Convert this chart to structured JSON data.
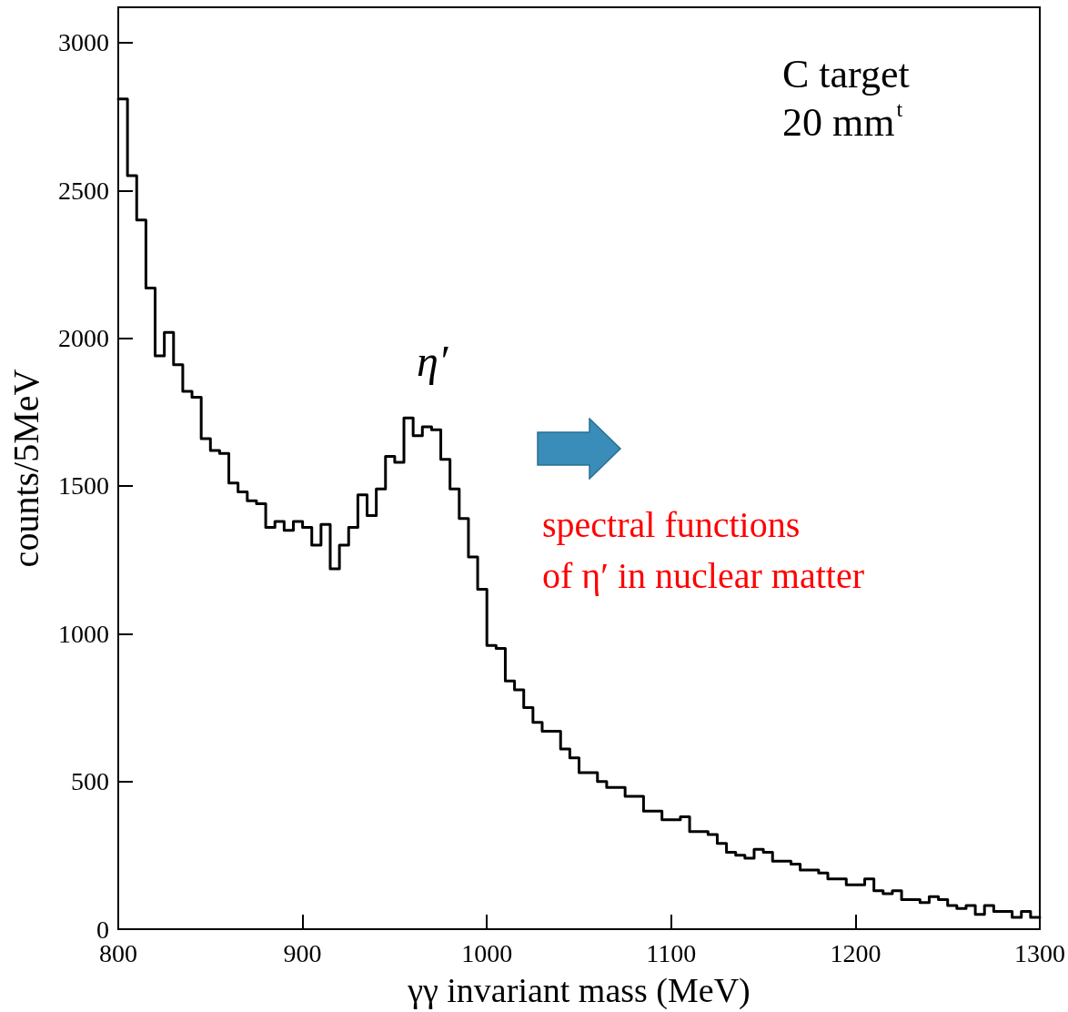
{
  "chart_data": {
    "type": "histogram",
    "xlabel": "γγ invariant mass (MeV)",
    "ylabel": "counts/5MeV",
    "bins": [
      800,
      805,
      810,
      815,
      820,
      825,
      830,
      835,
      840,
      845,
      850,
      855,
      860,
      865,
      870,
      875,
      880,
      885,
      890,
      895,
      900,
      905,
      910,
      915,
      920,
      925,
      930,
      935,
      940,
      945,
      950,
      955,
      960,
      965,
      970,
      975,
      980,
      985,
      990,
      995,
      1000,
      1005,
      1010,
      1015,
      1020,
      1025,
      1030,
      1035,
      1040,
      1045,
      1050,
      1055,
      1060,
      1065,
      1070,
      1075,
      1080,
      1085,
      1090,
      1095,
      1100,
      1105,
      1110,
      1115,
      1120,
      1125,
      1130,
      1135,
      1140,
      1145,
      1150,
      1155,
      1160,
      1165,
      1170,
      1175,
      1180,
      1185,
      1190,
      1195,
      1200,
      1205,
      1210,
      1215,
      1220,
      1225,
      1230,
      1235,
      1240,
      1245,
      1250,
      1255,
      1260,
      1265,
      1270,
      1275,
      1280,
      1285,
      1290,
      1295,
      1300
    ],
    "values": [
      2810,
      2550,
      2400,
      2170,
      1940,
      2020,
      1910,
      1820,
      1800,
      1660,
      1620,
      1610,
      1510,
      1480,
      1450,
      1440,
      1360,
      1380,
      1350,
      1380,
      1360,
      1300,
      1370,
      1220,
      1300,
      1360,
      1470,
      1400,
      1490,
      1600,
      1580,
      1730,
      1670,
      1700,
      1690,
      1590,
      1490,
      1390,
      1260,
      1150,
      960,
      950,
      840,
      810,
      750,
      700,
      670,
      670,
      610,
      580,
      530,
      530,
      500,
      480,
      480,
      450,
      450,
      400,
      400,
      370,
      370,
      380,
      330,
      330,
      320,
      290,
      260,
      250,
      240,
      270,
      260,
      230,
      230,
      220,
      200,
      200,
      190,
      170,
      170,
      150,
      150,
      170,
      130,
      120,
      130,
      100,
      100,
      90,
      110,
      100,
      80,
      70,
      80,
      50,
      80,
      60,
      60,
      40,
      60,
      40
    ],
    "color": "#000000",
    "xlim": [
      800,
      1300
    ],
    "xticks": [
      800,
      900,
      1000,
      1100,
      1200,
      1300
    ],
    "ylim": [
      0,
      3120
    ],
    "yticks": [
      0,
      500,
      1000,
      1500,
      2000,
      2500,
      3000
    ],
    "annotations": [
      "C target",
      "20 mm$^{t}$",
      "η′",
      "spectral functions\nof η′ in nuclear matter"
    ]
  }
}
